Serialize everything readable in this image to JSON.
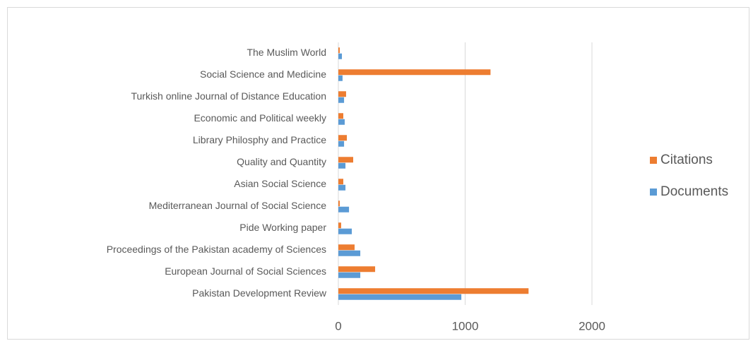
{
  "chart_data": {
    "type": "hbar",
    "categories": [
      "Pakistan Development Review",
      "European Journal of Social Sciences",
      "Proceedings of the Pakistan academy of Sciences",
      "Pide Working paper",
      "Mediterranean Journal of Social Science",
      "Asian Social Science",
      "Quality and Quantity",
      "Library Philosphy and Practice",
      "Economic and Political weekly",
      "Turkish online Journal of Distance Education",
      "Social Science and Medicine",
      "The Muslim World"
    ],
    "series": [
      {
        "name": "Documents",
        "color": "#5b9bd5",
        "values": [
          970,
          173,
          173,
          106,
          84,
          56,
          56,
          45,
          50,
          45,
          33,
          28
        ]
      },
      {
        "name": "Citations",
        "color": "#ed7d31",
        "values": [
          1500,
          290,
          128,
          22,
          11,
          39,
          117,
          67,
          39,
          61,
          1200,
          11
        ]
      }
    ],
    "xlim": [
      0,
      2000
    ],
    "xticks": [
      0,
      1000,
      2000
    ],
    "grid": true,
    "legend": "right"
  }
}
